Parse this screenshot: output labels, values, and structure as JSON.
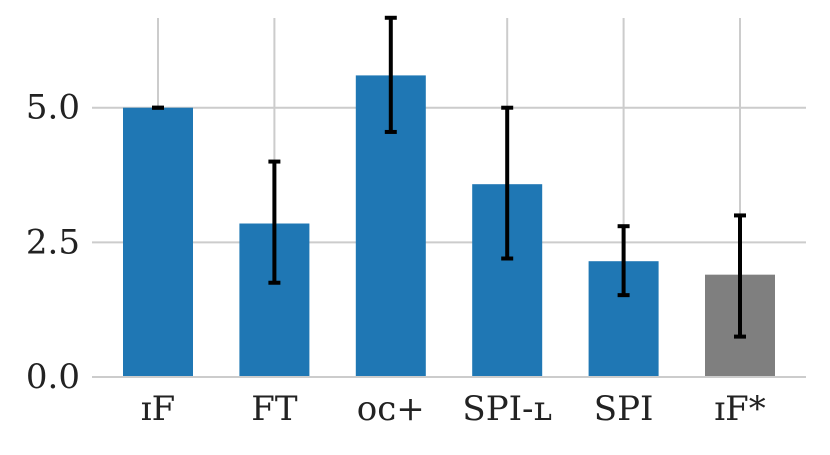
{
  "chart_data": {
    "type": "bar",
    "title": "",
    "xlabel": "",
    "ylabel": "",
    "categories": [
      "IF",
      "FT",
      "OC+",
      "SPI-L",
      "SPI",
      "IF*"
    ],
    "category_display": [
      "ɪF",
      "FT",
      "ᴏᴄ+",
      "SPI-ʟ",
      "SPI",
      "ɪF*"
    ],
    "values": [
      5.0,
      2.85,
      5.6,
      3.58,
      2.15,
      1.9
    ],
    "error_low": [
      5.0,
      1.75,
      4.55,
      2.2,
      1.52,
      0.75
    ],
    "error_high": [
      5.0,
      4.0,
      6.67,
      5.0,
      2.8,
      3.0
    ],
    "colors": [
      "#1f77b4",
      "#1f77b4",
      "#1f77b4",
      "#1f77b4",
      "#1f77b4",
      "#7f7f7f"
    ],
    "ylim": [
      0,
      7.0
    ],
    "yticks": [
      0.0,
      2.5,
      5.0
    ],
    "ytick_labels": [
      "0.0",
      "2.5",
      "5.0"
    ],
    "grid": true,
    "legend": "none"
  }
}
